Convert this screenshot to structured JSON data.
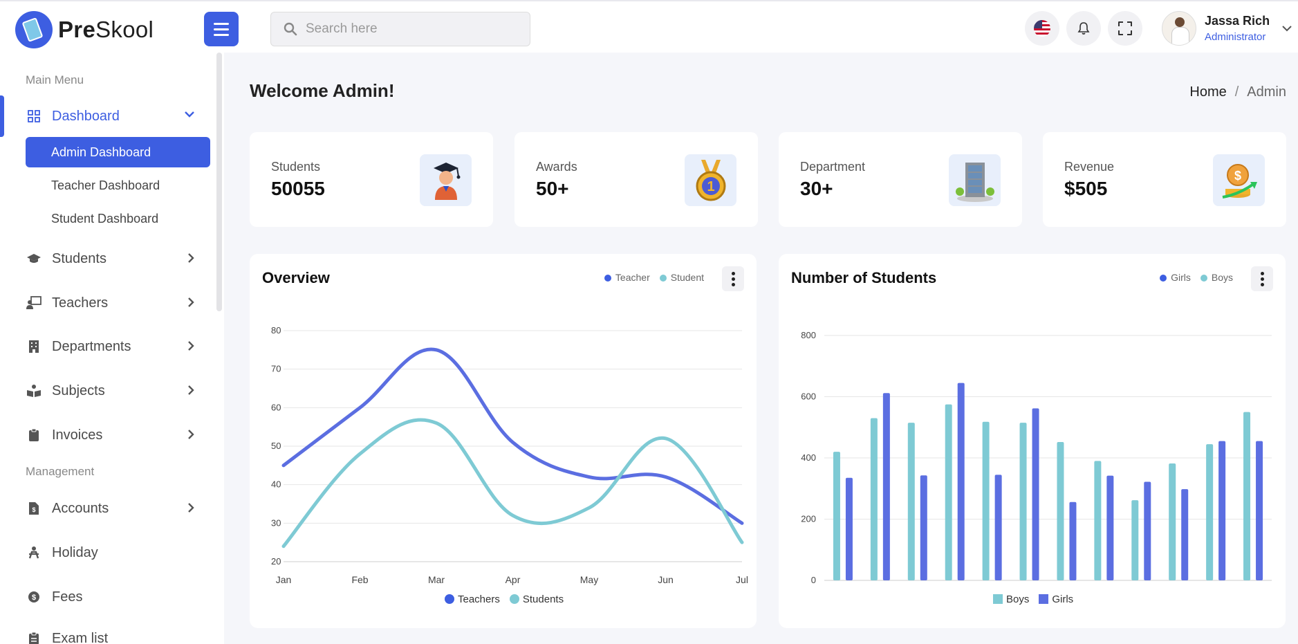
{
  "brand": {
    "name_bold": "Pre",
    "name_rest": "Skool"
  },
  "search": {
    "placeholder": "Search here"
  },
  "user": {
    "name": "Jassa Rich",
    "role": "Administrator"
  },
  "sidebar": {
    "main_menu_title": "Main Menu",
    "management_title": "Management",
    "items": [
      {
        "label": "Dashboard",
        "icon": "grid-icon"
      },
      {
        "label": "Students",
        "icon": "graduation-cap-icon"
      },
      {
        "label": "Teachers",
        "icon": "teacher-icon"
      },
      {
        "label": "Departments",
        "icon": "building-icon"
      },
      {
        "label": "Subjects",
        "icon": "book-reader-icon"
      },
      {
        "label": "Invoices",
        "icon": "clipboard-icon"
      },
      {
        "label": "Accounts",
        "icon": "file-invoice-dollar-icon"
      },
      {
        "label": "Holiday",
        "icon": "holiday-icon"
      },
      {
        "label": "Fees",
        "icon": "money-icon"
      },
      {
        "label": "Exam list",
        "icon": "clipboard-list-icon"
      }
    ],
    "dashboard_sub": [
      "Admin Dashboard",
      "Teacher Dashboard",
      "Student Dashboard"
    ]
  },
  "page": {
    "title": "Welcome Admin!",
    "breadcrumb_home": "Home",
    "breadcrumb_sep": "/",
    "breadcrumb_current": "Admin"
  },
  "stats": [
    {
      "label": "Students",
      "value": "50055",
      "icon": "graduate-student-icon"
    },
    {
      "label": "Awards",
      "value": "50+",
      "icon": "medal-icon"
    },
    {
      "label": "Department",
      "value": "30+",
      "icon": "building-icon"
    },
    {
      "label": "Revenue",
      "value": "$505",
      "icon": "coins-growth-icon"
    }
  ],
  "colors": {
    "accent": "#3d5ee1",
    "teacher": "#5b6ee1",
    "student": "#7ecad4",
    "boys": "#7ecad4",
    "girls": "#5b6ee1"
  },
  "overview": {
    "title": "Overview",
    "legend_top": [
      "Teacher",
      "Student"
    ],
    "legend_bottom": [
      "Teachers",
      "Students"
    ]
  },
  "students_chart": {
    "title": "Number of Students",
    "legend_top": [
      "Girls",
      "Boys"
    ],
    "legend_bottom": [
      "Boys",
      "Girls"
    ]
  },
  "chart_data": [
    {
      "type": "line",
      "title": "Overview",
      "categories": [
        "Jan",
        "Feb",
        "Mar",
        "Apr",
        "May",
        "Jun",
        "Jul"
      ],
      "series": [
        {
          "name": "Teachers",
          "values": [
            45,
            60,
            75,
            51,
            42,
            42,
            30
          ]
        },
        {
          "name": "Students",
          "values": [
            24,
            48,
            56,
            32,
            34,
            52,
            25
          ]
        }
      ],
      "ylim": [
        20,
        80
      ],
      "yticks": [
        20,
        30,
        40,
        50,
        60,
        70,
        80
      ],
      "grid": true,
      "legend": "bottom"
    },
    {
      "type": "bar",
      "title": "Number of Students",
      "categories": [
        "",
        "",
        "",
        "",
        "",
        "",
        "",
        "",
        "",
        "",
        "",
        ""
      ],
      "series": [
        {
          "name": "Boys",
          "values": [
            420,
            530,
            515,
            575,
            518,
            515,
            452,
            390,
            262,
            382,
            445,
            550
          ]
        },
        {
          "name": "Girls",
          "values": [
            335,
            612,
            343,
            645,
            345,
            562,
            256,
            342,
            322,
            298,
            455,
            455
          ]
        }
      ],
      "ylim": [
        0,
        800
      ],
      "yticks": [
        0,
        200,
        400,
        600,
        800
      ],
      "grid": true,
      "legend": "bottom"
    }
  ]
}
